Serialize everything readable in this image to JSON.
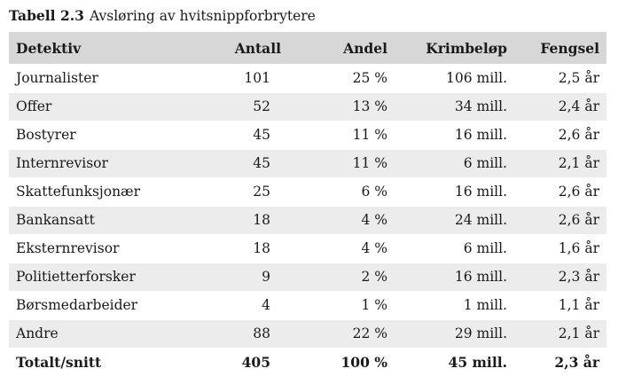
{
  "caption": {
    "number": "Tabell 2.3",
    "title": "Avsløring av hvitsnippforbrytere"
  },
  "headers": [
    "Detektiv",
    "Antall",
    "Andel",
    "Krimbeløp",
    "Fengsel"
  ],
  "rows": [
    [
      "Journalister",
      "101",
      "25 %",
      "106 mill.",
      "2,5 år"
    ],
    [
      "Offer",
      "52",
      "13 %",
      "34 mill.",
      "2,4 år"
    ],
    [
      "Bostyrer",
      "45",
      "11 %",
      "16 mill.",
      "2,6 år"
    ],
    [
      "Internrevisor",
      "45",
      "11 %",
      "6 mill.",
      "2,1 år"
    ],
    [
      "Skattefunksjonær",
      "25",
      "6 %",
      "16 mill.",
      "2,6 år"
    ],
    [
      "Bankansatt",
      "18",
      "4 %",
      "24 mill.",
      "2,6 år"
    ],
    [
      "Eksternrevisor",
      "18",
      "4 %",
      "6 mill.",
      "1,6 år"
    ],
    [
      "Politietterforsker",
      "9",
      "2 %",
      "16 mill.",
      "2,3 år"
    ],
    [
      "Børsmedarbeider",
      "4",
      "1 %",
      "1 mill.",
      "1,1 år"
    ],
    [
      "Andre",
      "88",
      "22 %",
      "29 mill.",
      "2,1 år"
    ]
  ],
  "total": [
    "Totalt/snitt",
    "405",
    "100 %",
    "45 mill.",
    "2,3 år"
  ]
}
